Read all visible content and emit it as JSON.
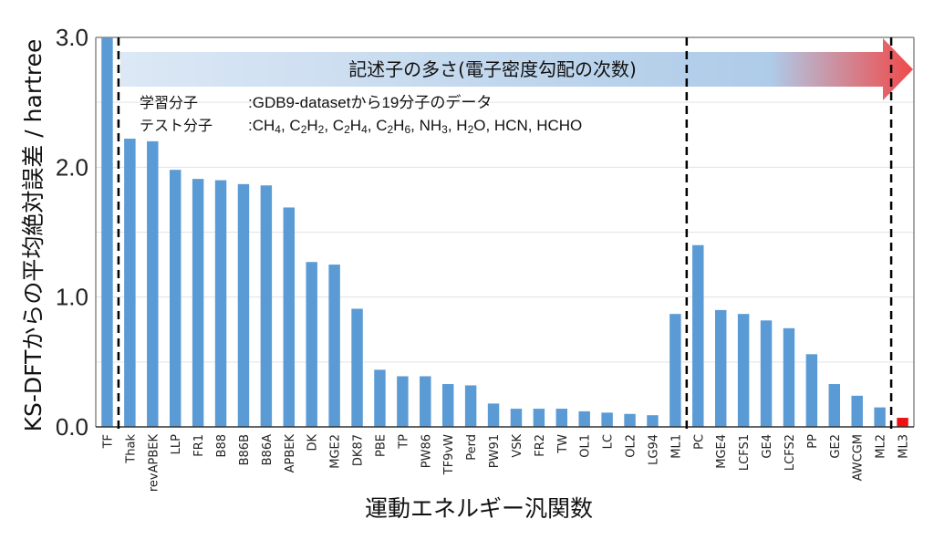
{
  "chart_data": {
    "type": "bar",
    "title": "",
    "xlabel": "運動エネルギー汎関数",
    "ylabel": "KS-DFTからの平均絶対誤差 / hartree",
    "ylim": [
      0,
      3.0
    ],
    "yticks": [
      "0.0",
      "1.0",
      "2.0",
      "3.0"
    ],
    "minor_gridlines": [
      0.5,
      1.0,
      1.5,
      2.0,
      2.5
    ],
    "grid": true,
    "categories": [
      "TF",
      "Thak",
      "revAPBEK",
      "LLP",
      "FR1",
      "B88",
      "B86B",
      "B86A",
      "APBEK",
      "DK",
      "MGE2",
      "DK87",
      "PBE",
      "TP",
      "PW86",
      "TF9vW",
      "Perd",
      "PW91",
      "VSK",
      "FR2",
      "TW",
      "OL1",
      "LC",
      "OL2",
      "LG94",
      "ML1",
      "PC",
      "MGE4",
      "LCFS1",
      "GE4",
      "LCFS2",
      "PP",
      "GE2",
      "AWCGM",
      "ML2",
      "ML3"
    ],
    "values": [
      3.0,
      2.22,
      2.2,
      1.98,
      1.91,
      1.9,
      1.87,
      1.86,
      1.69,
      1.27,
      1.25,
      0.91,
      0.44,
      0.39,
      0.39,
      0.33,
      0.32,
      0.18,
      0.14,
      0.14,
      0.14,
      0.12,
      0.11,
      0.1,
      0.09,
      0.87,
      1.4,
      0.9,
      0.87,
      0.82,
      0.76,
      0.56,
      0.33,
      0.24,
      0.15,
      0.07
    ],
    "highlight": {
      "category": "ML3",
      "color": "#ee1111"
    },
    "bar_color": "#5b9bd5",
    "dashed_separators_after": [
      "TF",
      "ML1",
      "ML2"
    ],
    "annotations": {
      "arrow_label": "記述子の多さ(電子密度勾配の次数)",
      "arrow_colors": {
        "start": "#dce8f5",
        "mid": "#aecbe8",
        "end": "#f04a4a"
      },
      "training_label": "学習分子",
      "training_value": ":GDB9-datasetから19分子のデータ",
      "test_label": "テスト分子",
      "test_value_parts": [
        {
          "t": ":CH"
        },
        {
          "sub": "4"
        },
        {
          "t": ", C"
        },
        {
          "sub": "2"
        },
        {
          "t": "H"
        },
        {
          "sub": "2"
        },
        {
          "t": ", C"
        },
        {
          "sub": "2"
        },
        {
          "t": "H"
        },
        {
          "sub": "4"
        },
        {
          "t": ", C"
        },
        {
          "sub": "2"
        },
        {
          "t": "H"
        },
        {
          "sub": "6"
        },
        {
          "t": ", NH"
        },
        {
          "sub": "3"
        },
        {
          "t": ", H"
        },
        {
          "sub": "2"
        },
        {
          "t": "O, HCN, HCHO"
        }
      ]
    }
  }
}
